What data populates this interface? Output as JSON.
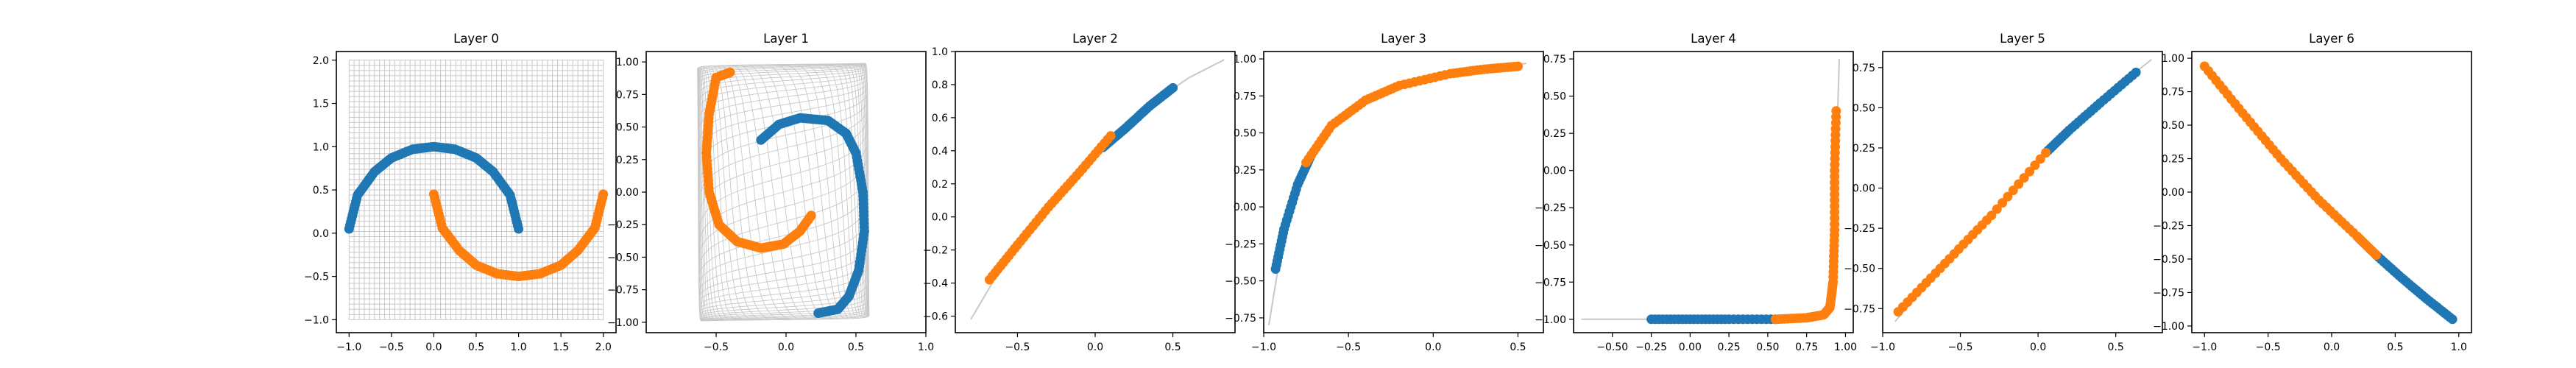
{
  "figure": {
    "colors": {
      "class_a": "#1f77b4",
      "class_b": "#ff7f0e",
      "grid": "#c8c8c8"
    }
  },
  "chart_data": [
    {
      "type": "scatter",
      "title": "Layer 0",
      "xlim": [
        -1.15,
        2.15
      ],
      "ylim": [
        -1.15,
        2.1
      ],
      "xticks": [
        -1.0,
        -0.5,
        0.0,
        0.5,
        1.0,
        1.5,
        2.0
      ],
      "xtick_labels": [
        "−1.0",
        "−0.5",
        "0.0",
        "0.5",
        "1.0",
        "1.5",
        "2.0"
      ],
      "yticks": [
        -1.0,
        -0.5,
        0.0,
        0.5,
        1.0,
        1.5,
        2.0
      ],
      "ytick_labels": [
        "−1.0",
        "−0.5",
        "0.0",
        "0.5",
        "1.0",
        "1.5",
        "2.0"
      ],
      "grid": "mesh",
      "series": [
        {
          "values": [
            [
              -1.0,
              0.05
            ],
            [
              -0.9,
              0.44
            ],
            [
              -0.7,
              0.71
            ],
            [
              -0.5,
              0.87
            ],
            [
              -0.25,
              0.97
            ],
            [
              0.0,
              1.0
            ],
            [
              0.25,
              0.97
            ],
            [
              0.5,
              0.87
            ],
            [
              0.7,
              0.71
            ],
            [
              0.9,
              0.44
            ],
            [
              1.0,
              0.05
            ]
          ]
        },
        {
          "values": [
            [
              0.0,
              0.45
            ],
            [
              0.1,
              0.06
            ],
            [
              0.3,
              -0.2
            ],
            [
              0.5,
              -0.37
            ],
            [
              0.75,
              -0.47
            ],
            [
              1.0,
              -0.5
            ],
            [
              1.25,
              -0.47
            ],
            [
              1.5,
              -0.37
            ],
            [
              1.7,
              -0.2
            ],
            [
              1.9,
              0.06
            ],
            [
              2.0,
              0.45
            ]
          ]
        }
      ]
    },
    {
      "type": "scatter",
      "title": "Layer 1",
      "xlim": [
        -1.0,
        1.0
      ],
      "ylim": [
        -1.08,
        1.08
      ],
      "xticks": [
        -0.5,
        0.0,
        0.5,
        1.0
      ],
      "xtick_labels": [
        "−0.5",
        "0.0",
        "0.5",
        "1.0"
      ],
      "yticks": [
        -1.0,
        -0.75,
        -0.5,
        -0.25,
        0.0,
        0.25,
        0.5,
        0.75,
        1.0
      ],
      "ytick_labels": [
        "−1.00",
        "−0.75",
        "−0.50",
        "−0.25",
        "0.00",
        "0.25",
        "0.50",
        "0.75",
        "1.00"
      ],
      "grid": "warped-mesh",
      "series": [
        {
          "values": [
            [
              -0.18,
              0.4
            ],
            [
              -0.05,
              0.52
            ],
            [
              0.1,
              0.57
            ],
            [
              0.3,
              0.55
            ],
            [
              0.43,
              0.45
            ],
            [
              0.5,
              0.3
            ],
            [
              0.55,
              0.0
            ],
            [
              0.56,
              -0.3
            ],
            [
              0.52,
              -0.6
            ],
            [
              0.45,
              -0.8
            ],
            [
              0.37,
              -0.9
            ],
            [
              0.23,
              -0.93
            ]
          ]
        },
        {
          "values": [
            [
              -0.4,
              0.92
            ],
            [
              -0.5,
              0.88
            ],
            [
              -0.55,
              0.6
            ],
            [
              -0.57,
              0.3
            ],
            [
              -0.55,
              0.0
            ],
            [
              -0.48,
              -0.25
            ],
            [
              -0.35,
              -0.38
            ],
            [
              -0.18,
              -0.43
            ],
            [
              -0.02,
              -0.4
            ],
            [
              0.1,
              -0.3
            ],
            [
              0.18,
              -0.18
            ]
          ]
        }
      ]
    },
    {
      "type": "scatter",
      "title": "Layer 2",
      "xlim": [
        -0.9,
        0.9
      ],
      "ylim": [
        -0.7,
        1.0
      ],
      "xticks": [
        -0.5,
        0.0,
        0.5
      ],
      "xtick_labels": [
        "−0.5",
        "0.0",
        "0.5"
      ],
      "yticks": [
        -0.6,
        -0.4,
        -0.2,
        0.0,
        0.2,
        0.4,
        0.6,
        0.8,
        1.0
      ],
      "ytick_labels": [
        "−0.6",
        "−0.4",
        "−0.2",
        "0.0",
        "0.2",
        "0.4",
        "0.6",
        "0.8",
        "1.0"
      ],
      "grid": "curve",
      "curve": [
        [
          -0.8,
          -0.62
        ],
        [
          -0.6,
          -0.3
        ],
        [
          -0.4,
          -0.06
        ],
        [
          -0.2,
          0.16
        ],
        [
          0.0,
          0.36
        ],
        [
          0.2,
          0.54
        ],
        [
          0.4,
          0.71
        ],
        [
          0.6,
          0.84
        ],
        [
          0.83,
          0.95
        ]
      ],
      "series": [
        {
          "values": [
            [
              0.05,
              0.42
            ],
            [
              0.2,
              0.54
            ],
            [
              0.35,
              0.67
            ],
            [
              0.5,
              0.78
            ]
          ]
        },
        {
          "values": [
            [
              -0.68,
              -0.38
            ],
            [
              -0.5,
              -0.17
            ],
            [
              -0.3,
              0.06
            ],
            [
              -0.1,
              0.27
            ],
            [
              0.1,
              0.49
            ]
          ]
        }
      ]
    },
    {
      "type": "scatter",
      "title": "Layer 3",
      "xlim": [
        -1.0,
        0.65
      ],
      "ylim": [
        -0.85,
        1.05
      ],
      "xticks": [
        -1.0,
        -0.5,
        0.0,
        0.5
      ],
      "xtick_labels": [
        "−1.0",
        "−0.5",
        "0.0",
        "0.5"
      ],
      "yticks": [
        -0.75,
        -0.5,
        -0.25,
        0.0,
        0.25,
        0.5,
        0.75,
        1.0
      ],
      "ytick_labels": [
        "−0.75",
        "−0.50",
        "−0.25",
        "0.00",
        "0.25",
        "0.50",
        "0.75",
        "1.00"
      ],
      "grid": "curve",
      "curve": [
        [
          -0.97,
          -0.8
        ],
        [
          -0.92,
          -0.45
        ],
        [
          -0.85,
          -0.1
        ],
        [
          -0.75,
          0.3
        ],
        [
          -0.6,
          0.55
        ],
        [
          -0.4,
          0.72
        ],
        [
          -0.1,
          0.85
        ],
        [
          0.2,
          0.92
        ],
        [
          0.55,
          0.97
        ]
      ],
      "series": [
        {
          "values": [
            [
              -0.93,
              -0.42
            ],
            [
              -0.88,
              -0.15
            ],
            [
              -0.8,
              0.15
            ],
            [
              -0.72,
              0.35
            ]
          ]
        },
        {
          "values": [
            [
              -0.75,
              0.3
            ],
            [
              -0.6,
              0.55
            ],
            [
              -0.4,
              0.72
            ],
            [
              -0.2,
              0.82
            ],
            [
              0.1,
              0.9
            ],
            [
              0.3,
              0.93
            ],
            [
              0.5,
              0.95
            ]
          ]
        }
      ]
    },
    {
      "type": "scatter",
      "title": "Layer 4",
      "xlim": [
        -0.75,
        1.05
      ],
      "ylim": [
        -1.09,
        0.8
      ],
      "xticks": [
        -0.5,
        -0.25,
        0.0,
        0.25,
        0.5,
        0.75,
        1.0
      ],
      "xtick_labels": [
        "−0.50",
        "−0.25",
        "0.00",
        "0.25",
        "0.50",
        "0.75",
        "1.00"
      ],
      "yticks": [
        -1.0,
        -0.75,
        -0.5,
        -0.25,
        0.0,
        0.25,
        0.5,
        0.75
      ],
      "ytick_labels": [
        "−1.00",
        "−0.75",
        "−0.50",
        "−0.25",
        "0.00",
        "0.25",
        "0.50",
        "0.75"
      ],
      "grid": "curve",
      "curve": [
        [
          -0.7,
          -1.0
        ],
        [
          0.5,
          -1.0
        ],
        [
          0.8,
          -0.99
        ],
        [
          0.88,
          -0.96
        ],
        [
          0.92,
          -0.8
        ],
        [
          0.94,
          -0.2
        ],
        [
          0.95,
          0.4
        ],
        [
          0.96,
          0.75
        ]
      ],
      "series": [
        {
          "values": [
            [
              -0.25,
              -1.0
            ],
            [
              0.0,
              -1.0
            ],
            [
              0.25,
              -1.0
            ],
            [
              0.55,
              -1.0
            ]
          ]
        },
        {
          "values": [
            [
              0.55,
              -1.0
            ],
            [
              0.75,
              -0.99
            ],
            [
              0.86,
              -0.97
            ],
            [
              0.9,
              -0.92
            ],
            [
              0.92,
              -0.75
            ],
            [
              0.93,
              -0.4
            ],
            [
              0.93,
              0.0
            ],
            [
              0.94,
              0.4
            ]
          ]
        }
      ]
    },
    {
      "type": "scatter",
      "title": "Layer 5",
      "xlim": [
        -1.0,
        0.8
      ],
      "ylim": [
        -0.9,
        0.85
      ],
      "xticks": [
        -1.0,
        -0.5,
        0.0,
        0.5
      ],
      "xtick_labels": [
        "−1.0",
        "−0.5",
        "0.0",
        "0.5"
      ],
      "yticks": [
        -0.75,
        -0.5,
        -0.25,
        0.0,
        0.25,
        0.5,
        0.75
      ],
      "ytick_labels": [
        "−0.75",
        "−0.50",
        "−0.25",
        "0.00",
        "0.25",
        "0.50",
        "0.75"
      ],
      "grid": "curve",
      "curve": [
        [
          -0.92,
          -0.83
        ],
        [
          -0.6,
          -0.47
        ],
        [
          -0.3,
          -0.17
        ],
        [
          0.0,
          0.15
        ],
        [
          0.3,
          0.43
        ],
        [
          0.6,
          0.7
        ],
        [
          0.73,
          0.8
        ]
      ],
      "series": [
        {
          "values": [
            [
              0.05,
              0.22
            ],
            [
              0.2,
              0.36
            ],
            [
              0.4,
              0.53
            ],
            [
              0.63,
              0.72
            ]
          ]
        },
        {
          "values": [
            [
              -0.9,
              -0.77
            ],
            [
              -0.6,
              -0.47
            ],
            [
              -0.3,
              -0.17
            ],
            [
              0.05,
              0.22
            ]
          ]
        }
      ]
    },
    {
      "type": "scatter",
      "title": "Layer 6",
      "xlim": [
        -1.1,
        1.1
      ],
      "ylim": [
        -1.05,
        1.05
      ],
      "xticks": [
        -1.0,
        -0.5,
        0.0,
        0.5,
        1.0
      ],
      "xtick_labels": [
        "−1.0",
        "−0.5",
        "0.0",
        "0.5",
        "1.0"
      ],
      "yticks": [
        -1.0,
        -0.75,
        -0.5,
        -0.25,
        0.0,
        0.25,
        0.5,
        0.75,
        1.0
      ],
      "ytick_labels": [
        "−1.00",
        "−0.75",
        "−0.50",
        "−0.25",
        "0.00",
        "0.25",
        "0.50",
        "0.75",
        "1.00"
      ],
      "grid": "curve",
      "curve": [
        [
          -1.0,
          0.97
        ],
        [
          -0.7,
          0.59
        ],
        [
          -0.4,
          0.25
        ],
        [
          -0.1,
          -0.06
        ],
        [
          0.2,
          -0.33
        ],
        [
          0.5,
          -0.6
        ],
        [
          0.8,
          -0.84
        ],
        [
          0.98,
          -0.97
        ]
      ],
      "series": [
        {
          "values": [
            [
              0.35,
              -0.47
            ],
            [
              0.55,
              -0.64
            ],
            [
              0.75,
              -0.8
            ],
            [
              0.95,
              -0.95
            ]
          ]
        },
        {
          "values": [
            [
              -1.0,
              0.94
            ],
            [
              -0.7,
              0.59
            ],
            [
              -0.4,
              0.25
            ],
            [
              -0.1,
              -0.06
            ],
            [
              0.2,
              -0.33
            ],
            [
              0.35,
              -0.47
            ]
          ]
        }
      ]
    }
  ]
}
